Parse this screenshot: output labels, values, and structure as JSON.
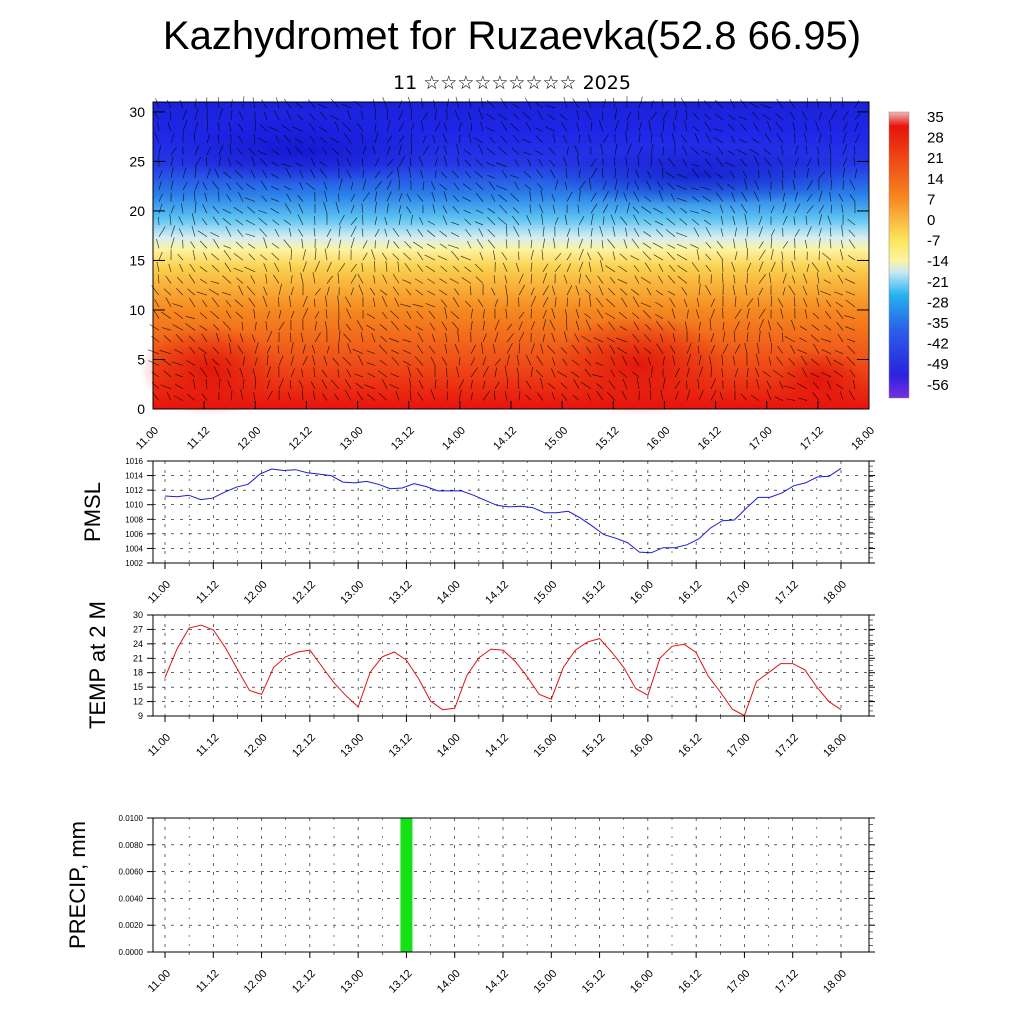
{
  "title": "Kazhydromet for Ruzaevka(52.8 66.95)",
  "subtitle": "11 ☆☆☆☆☆☆☆☆☆ 2025",
  "chart_data": [
    {
      "type": "heatmap",
      "title": "",
      "x_ticks": [
        "11.00",
        "11.12",
        "12.00",
        "12.12",
        "13.00",
        "13.12",
        "14.00",
        "14.12",
        "15.00",
        "15.12",
        "16.00",
        "16.12",
        "17.00",
        "17.12",
        "18.00"
      ],
      "y_ticks": [
        "0",
        "5",
        "10",
        "15",
        "20",
        "25",
        "30"
      ],
      "ylim": [
        0,
        31
      ],
      "colorbar_labels": [
        "35",
        "28",
        "21",
        "14",
        "7",
        "0",
        "-7",
        "-14",
        "-21",
        "-28",
        "-35",
        "-42",
        "-49",
        "-56"
      ],
      "colors": {
        "hot": "#e8120d",
        "warm": "#f28a1e",
        "neutral": "#fde65e",
        "cool": "#25b2f0",
        "cold": "#1f27e8"
      },
      "overlay": "wind-vectors"
    },
    {
      "type": "line",
      "ylabel": "PMSL",
      "x_ticks": [
        "11.00",
        "11.12",
        "12.00",
        "12.12",
        "13.00",
        "13.12",
        "14.00",
        "14.12",
        "15.00",
        "15.12",
        "16.00",
        "16.12",
        "17.00",
        "17.12",
        "18.00"
      ],
      "y_ticks": [
        "1016",
        "1014",
        "1012",
        "1010",
        "1008",
        "1006",
        "1004",
        "1002"
      ],
      "ylim": [
        1002,
        1016
      ],
      "color": "#1a1ad6",
      "series": [
        {
          "values": [
            1011.2,
            1011.1,
            1011.3,
            1010.7,
            1010.9,
            1011.7,
            1012.4,
            1012.8,
            1014.2,
            1014.9,
            1014.7,
            1014.8,
            1014.4,
            1014.2,
            1014.0,
            1013.1,
            1013.0,
            1013.2,
            1012.8,
            1012.2,
            1012.3,
            1012.9,
            1012.5,
            1011.9,
            1011.9,
            1011.9,
            1011.3,
            1010.6,
            1009.9,
            1009.7,
            1009.8,
            1009.6,
            1008.9,
            1008.9,
            1009.1,
            1008.2,
            1007.1,
            1005.9,
            1005.4,
            1004.8,
            1003.5,
            1003.4,
            1004.1,
            1004.1,
            1004.5,
            1005.3,
            1006.8,
            1007.8,
            1007.9,
            1009.5,
            1011.0,
            1011.0,
            1011.6,
            1012.6,
            1013.0,
            1013.8,
            1013.9,
            1015.0
          ]
        }
      ]
    },
    {
      "type": "line",
      "ylabel": "TEMP at 2 M",
      "x_ticks": [
        "11.00",
        "11.12",
        "12.00",
        "12.12",
        "13.00",
        "13.12",
        "14.00",
        "14.12",
        "15.00",
        "15.12",
        "16.00",
        "16.12",
        "17.00",
        "17.12",
        "18.00"
      ],
      "y_ticks": [
        "30",
        "27",
        "24",
        "21",
        "18",
        "15",
        "12",
        "9"
      ],
      "ylim": [
        9,
        30
      ],
      "color": "#e01414",
      "series": [
        {
          "values": [
            17.0,
            23.0,
            27.3,
            27.9,
            26.9,
            23.2,
            18.7,
            14.3,
            13.5,
            19.1,
            21.3,
            22.3,
            22.7,
            19.3,
            15.9,
            13.2,
            10.9,
            18.1,
            21.3,
            22.3,
            20.6,
            16.8,
            12.1,
            10.3,
            10.6,
            17.4,
            21.1,
            22.9,
            22.7,
            20.4,
            17.2,
            13.5,
            12.5,
            19.1,
            22.7,
            24.4,
            25.1,
            22.3,
            19.1,
            14.7,
            13.3,
            21.0,
            23.5,
            23.9,
            22.2,
            17.3,
            14.0,
            10.4,
            9.1,
            16.2,
            18.0,
            19.9,
            19.9,
            18.6,
            15.0,
            12.0,
            10.3
          ]
        }
      ]
    },
    {
      "type": "bar",
      "ylabel": "PRECIP, mm",
      "x_ticks": [
        "11.00",
        "11.12",
        "12.00",
        "12.12",
        "13.00",
        "13.12",
        "14.00",
        "14.12",
        "15.00",
        "15.12",
        "16.00",
        "16.12",
        "17.00",
        "17.12",
        "18.00"
      ],
      "y_ticks": [
        "0.0100",
        "0.0080",
        "0.0060",
        "0.0040",
        "0.0020",
        "0.0000"
      ],
      "ylim": [
        0,
        0.01
      ],
      "color": "#16e016",
      "bars": [
        {
          "x": "13.12",
          "value": 0.01
        }
      ]
    }
  ]
}
